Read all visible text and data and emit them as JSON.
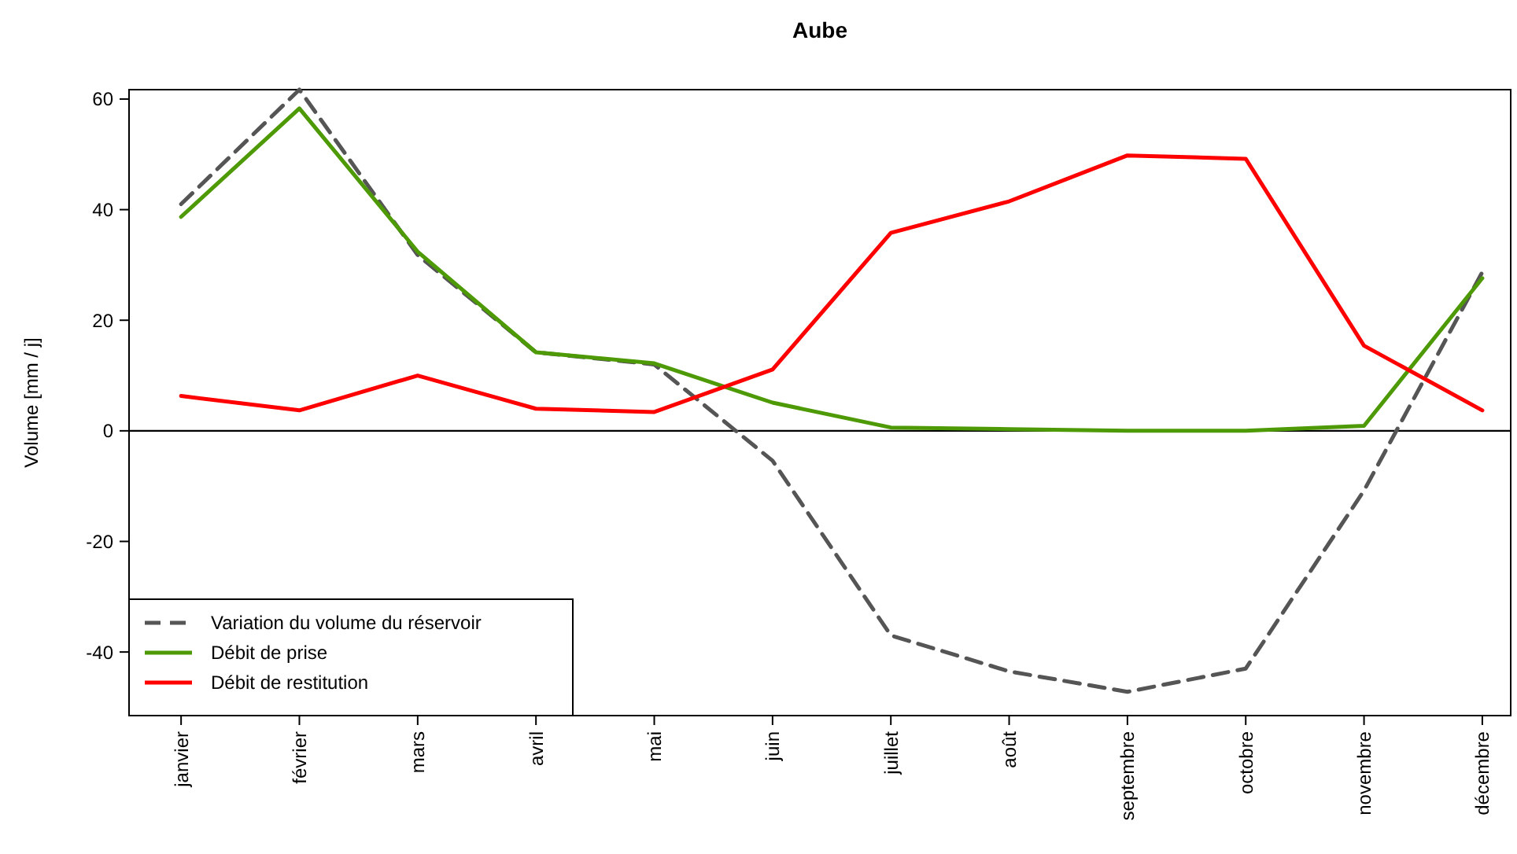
{
  "chart_data": {
    "type": "line",
    "title": "Aube",
    "ylabel": "Volume [mm / j]",
    "categories": [
      "janvier",
      "février",
      "mars",
      "avril",
      "mai",
      "juin",
      "juillet",
      "août",
      "septembre",
      "octobre",
      "novembre",
      "décembre"
    ],
    "series": [
      {
        "name": "Variation du volume du réservoir",
        "color": "#555555",
        "line_style": "dashed",
        "values": [
          41,
          61.7,
          31.8,
          14.2,
          12,
          -5.4,
          -37,
          -43.5,
          -47.2,
          -43,
          -10.8,
          28.7
        ]
      },
      {
        "name": "Débit de prise",
        "color": "#4e9a06",
        "line_style": "solid",
        "values": [
          38.7,
          58.3,
          32.4,
          14.2,
          12.2,
          5.1,
          0.6,
          0.3,
          0,
          0,
          0.9,
          27.6
        ]
      },
      {
        "name": "Débit de restitution",
        "color": "#ff0000",
        "line_style": "solid",
        "values": [
          6.3,
          3.7,
          10,
          4,
          3.4,
          11.1,
          35.8,
          41.5,
          49.8,
          49.2,
          15.4,
          3.7
        ]
      }
    ],
    "ylim": [
      -51.5,
      61.7
    ],
    "yticks": [
      -40,
      -20,
      0,
      20,
      40,
      60
    ],
    "ref_lines": [
      {
        "axis": "y",
        "value": 0,
        "color": "#000000"
      }
    ],
    "legend": "bottom left",
    "grid": false
  }
}
